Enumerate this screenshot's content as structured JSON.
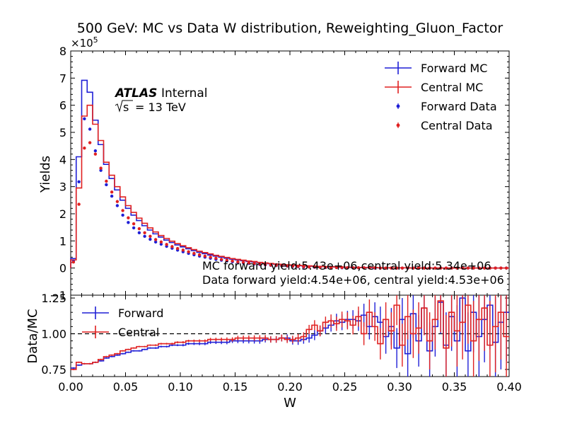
{
  "chart_data": {
    "type": "step-histogram-with-ratio",
    "title": "500 GeV: MC vs Data W distribution, Reweighting_Gluon_Factor",
    "top_panel": {
      "ylabel": "Yields",
      "y_multiplier": "×10",
      "y_multiplier_exp": "5",
      "ylim": [
        -1,
        8
      ],
      "yticks": [
        "−1",
        "0",
        "1",
        "2",
        "3",
        "4",
        "5",
        "6",
        "7",
        "8"
      ],
      "legend_position": "top-right",
      "atlas_label": "ATLAS",
      "atlas_sublabel": "Internal",
      "energy_label_root": "s",
      "energy_label_value": "= 13 TeV",
      "annotation_mc": "MC forward yield:5.43e+06,central yield:5.34e+06",
      "annotation_data": "Data forward yield:4.54e+06, central yield:4.53e+06"
    },
    "bottom_panel": {
      "ylabel": "Data/MC",
      "ylim": [
        0.7,
        1.27
      ],
      "yticks": [
        "0.75",
        "1.00",
        "1.25"
      ],
      "reference_line": 1.0,
      "legend_position": "top-left"
    },
    "xlabel": "W",
    "xlim": [
      0.0,
      0.4
    ],
    "xticks": [
      "0.00",
      "0.05",
      "0.10",
      "0.15",
      "0.20",
      "0.25",
      "0.30",
      "0.35",
      "0.40"
    ],
    "bin_width": 0.005,
    "series": [
      {
        "name": "Forward MC",
        "kind": "mc",
        "color": "#1f1fd6",
        "values": [
          0.35,
          4.1,
          6.92,
          6.48,
          5.45,
          4.55,
          3.82,
          3.3,
          2.88,
          2.5,
          2.2,
          1.95,
          1.75,
          1.56,
          1.4,
          1.26,
          1.14,
          1.03,
          0.94,
          0.85,
          0.78,
          0.71,
          0.64,
          0.58,
          0.53,
          0.48,
          0.44,
          0.4,
          0.36,
          0.33,
          0.3,
          0.27,
          0.24,
          0.22,
          0.2,
          0.18,
          0.16,
          0.14,
          0.13,
          0.11,
          0.1,
          0.09,
          0.08,
          0.07,
          0.06,
          0.05,
          0.05,
          0.04,
          0.04,
          0.03,
          0.03,
          0.02,
          0.02,
          0.02,
          0.02,
          0.01,
          0.01,
          0.01,
          0.01,
          0.01,
          0.01,
          0.01,
          0.0,
          0.0,
          0.0,
          0.0,
          0.0,
          0.0,
          0.0,
          0.0,
          0.0,
          0.0,
          0.0,
          0.0,
          0.0,
          0.0,
          0.0,
          0.0,
          0.0,
          0.0
        ]
      },
      {
        "name": "Central MC",
        "kind": "mc",
        "color": "#e02020",
        "values": [
          0.3,
          2.95,
          5.6,
          6.0,
          5.3,
          4.7,
          3.9,
          3.42,
          3.0,
          2.62,
          2.3,
          2.05,
          1.84,
          1.65,
          1.48,
          1.33,
          1.2,
          1.09,
          0.99,
          0.9,
          0.82,
          0.75,
          0.68,
          0.62,
          0.57,
          0.52,
          0.47,
          0.43,
          0.39,
          0.35,
          0.32,
          0.29,
          0.26,
          0.24,
          0.21,
          0.19,
          0.17,
          0.15,
          0.14,
          0.12,
          0.11,
          0.1,
          0.09,
          0.08,
          0.07,
          0.06,
          0.05,
          0.05,
          0.04,
          0.04,
          0.03,
          0.03,
          0.02,
          0.02,
          0.02,
          0.02,
          0.01,
          0.01,
          0.01,
          0.01,
          0.01,
          0.01,
          0.0,
          0.0,
          0.0,
          0.0,
          0.0,
          0.0,
          0.0,
          0.0,
          0.0,
          0.0,
          0.0,
          0.0,
          0.0,
          0.0,
          0.0,
          0.0,
          0.0,
          0.0
        ]
      },
      {
        "name": "Forward Data",
        "kind": "data",
        "color": "#1f1fd6",
        "values": [
          0.25,
          3.18,
          5.5,
          5.12,
          4.32,
          3.6,
          3.07,
          2.65,
          2.3,
          1.95,
          1.68,
          1.48,
          1.3,
          1.17,
          1.06,
          0.96,
          0.88,
          0.8,
          0.73,
          0.66,
          0.6,
          0.54,
          0.49,
          0.44,
          0.4,
          0.36,
          0.32,
          0.29,
          0.26,
          0.23,
          0.21,
          0.19,
          0.17,
          0.15,
          0.13,
          0.12,
          0.1,
          0.09,
          0.08,
          0.07,
          0.06,
          0.05,
          0.04,
          0.04,
          0.03,
          0.03,
          0.02,
          0.02,
          0.02,
          0.01,
          0.01,
          0.01,
          0.01,
          0.01,
          0.01,
          0.0,
          0.0,
          0.0,
          0.0,
          0.0,
          0.0,
          0.0,
          0.0,
          0.0,
          0.0,
          0.0,
          0.0,
          0.0,
          0.0,
          0.0,
          0.0,
          0.0,
          0.0,
          0.0,
          0.0,
          0.0,
          0.0,
          0.0,
          0.0,
          0.0
        ]
      },
      {
        "name": "Central Data",
        "kind": "data",
        "color": "#e02020",
        "values": [
          0.22,
          2.35,
          4.42,
          4.62,
          4.2,
          3.68,
          3.2,
          2.8,
          2.45,
          2.12,
          1.85,
          1.63,
          1.45,
          1.3,
          1.17,
          1.05,
          0.96,
          0.87,
          0.79,
          0.72,
          0.66,
          0.6,
          0.54,
          0.49,
          0.44,
          0.4,
          0.36,
          0.32,
          0.29,
          0.26,
          0.23,
          0.21,
          0.19,
          0.17,
          0.15,
          0.13,
          0.11,
          0.1,
          0.09,
          0.08,
          0.07,
          0.06,
          0.05,
          0.04,
          0.04,
          0.03,
          0.03,
          0.02,
          0.02,
          0.02,
          0.01,
          0.01,
          0.01,
          0.01,
          0.01,
          0.01,
          0.0,
          0.0,
          0.0,
          0.0,
          0.0,
          0.0,
          0.0,
          0.0,
          0.0,
          0.0,
          0.0,
          0.0,
          0.0,
          0.0,
          0.0,
          0.0,
          0.0,
          0.0,
          0.0,
          0.0,
          0.0,
          0.0,
          0.0,
          0.0
        ]
      }
    ],
    "ratio_series": [
      {
        "name": "Forward",
        "color": "#1f1fd6",
        "values": [
          0.76,
          0.78,
          0.79,
          0.79,
          0.8,
          0.81,
          0.83,
          0.84,
          0.85,
          0.86,
          0.87,
          0.88,
          0.88,
          0.89,
          0.9,
          0.9,
          0.91,
          0.91,
          0.92,
          0.92,
          0.92,
          0.93,
          0.93,
          0.93,
          0.93,
          0.94,
          0.94,
          0.94,
          0.94,
          0.95,
          0.95,
          0.95,
          0.95,
          0.95,
          0.95,
          0.96,
          0.96,
          0.96,
          0.97,
          0.97,
          0.95,
          0.95,
          0.96,
          0.97,
          0.99,
          1.02,
          1.04,
          1.06,
          1.09,
          1.08,
          1.1,
          1.1,
          1.09,
          1.13,
          1.05,
          1.12,
          1.08,
          0.98,
          1.05,
          0.9,
          1.1,
          0.86,
          1.14,
          0.95,
          1.18,
          0.88,
          1.05,
          1.22,
          0.92,
          1.12,
          0.95,
          1.25,
          0.88,
          1.15,
          0.98,
          1.1,
          1.2,
          0.94,
          1.08,
          1.15
        ],
        "errors": [
          0.005,
          0.005,
          0.005,
          0.005,
          0.005,
          0.005,
          0.005,
          0.005,
          0.005,
          0.005,
          0.005,
          0.005,
          0.005,
          0.005,
          0.005,
          0.006,
          0.006,
          0.006,
          0.007,
          0.007,
          0.008,
          0.008,
          0.009,
          0.01,
          0.01,
          0.011,
          0.012,
          0.013,
          0.014,
          0.015,
          0.016,
          0.017,
          0.018,
          0.019,
          0.02,
          0.021,
          0.022,
          0.023,
          0.024,
          0.025,
          0.026,
          0.028,
          0.03,
          0.032,
          0.035,
          0.038,
          0.04,
          0.045,
          0.05,
          0.055,
          0.06,
          0.065,
          0.07,
          0.08,
          0.09,
          0.1,
          0.11,
          0.12,
          0.13,
          0.14,
          0.15,
          0.16,
          0.17,
          0.18,
          0.19,
          0.2,
          0.21,
          0.22,
          0.23,
          0.24,
          0.25,
          0.26,
          0.27,
          0.28,
          0.29,
          0.3,
          0.31,
          0.32,
          0.33,
          0.34
        ]
      },
      {
        "name": "Central",
        "color": "#e02020",
        "values": [
          0.75,
          0.8,
          0.79,
          0.79,
          0.8,
          0.82,
          0.84,
          0.85,
          0.86,
          0.88,
          0.89,
          0.9,
          0.91,
          0.91,
          0.92,
          0.92,
          0.93,
          0.93,
          0.93,
          0.94,
          0.94,
          0.95,
          0.95,
          0.95,
          0.95,
          0.96,
          0.96,
          0.96,
          0.96,
          0.96,
          0.97,
          0.97,
          0.97,
          0.97,
          0.97,
          0.97,
          0.96,
          0.96,
          0.97,
          0.96,
          0.96,
          0.97,
          0.98,
          1.03,
          1.06,
          1.02,
          1.08,
          1.09,
          1.07,
          1.1,
          1.09,
          1.06,
          1.12,
          1.0,
          1.15,
          1.05,
          0.93,
          1.1,
          1.02,
          1.2,
          0.92,
          1.12,
          1.0,
          1.04,
          1.18,
          0.95,
          1.1,
          1.23,
          0.9,
          1.15,
          1.02,
          1.08,
          1.2,
          0.95,
          1.1,
          1.18,
          0.92,
          1.05,
          1.15,
          0.98
        ],
        "errors": [
          0.005,
          0.005,
          0.005,
          0.005,
          0.005,
          0.005,
          0.005,
          0.005,
          0.005,
          0.005,
          0.005,
          0.005,
          0.005,
          0.005,
          0.005,
          0.006,
          0.006,
          0.006,
          0.007,
          0.007,
          0.008,
          0.008,
          0.009,
          0.01,
          0.01,
          0.011,
          0.012,
          0.013,
          0.014,
          0.015,
          0.016,
          0.017,
          0.018,
          0.019,
          0.02,
          0.021,
          0.022,
          0.023,
          0.024,
          0.025,
          0.026,
          0.028,
          0.03,
          0.032,
          0.035,
          0.038,
          0.04,
          0.045,
          0.05,
          0.055,
          0.06,
          0.065,
          0.07,
          0.08,
          0.09,
          0.1,
          0.11,
          0.12,
          0.13,
          0.14,
          0.15,
          0.16,
          0.17,
          0.18,
          0.19,
          0.2,
          0.21,
          0.22,
          0.23,
          0.24,
          0.25,
          0.26,
          0.27,
          0.28,
          0.29,
          0.3,
          0.31,
          0.32,
          0.33,
          0.34
        ]
      }
    ]
  }
}
